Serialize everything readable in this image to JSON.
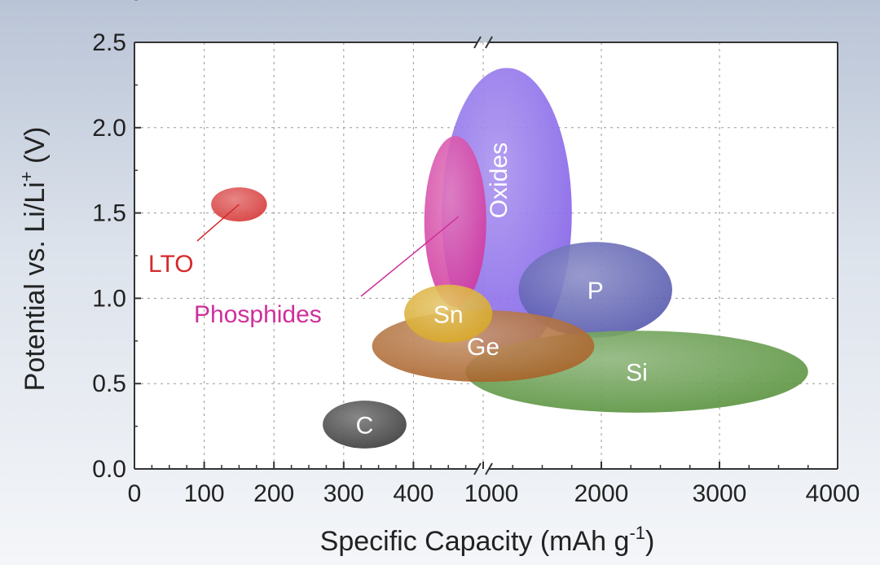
{
  "chart_data": {
    "type": "scatter",
    "xlabel": "Specific Capacity (mAh g",
    "xlabel_sup": "-1",
    "xlabel_end": ")",
    "ylabel": "Potential vs. Li/Li",
    "ylabel_sup": "+",
    "ylabel_end": " (V)",
    "x_axis_broken": true,
    "x_ticks": [
      "0",
      "100",
      "200",
      "300",
      "400",
      "1000",
      "2000",
      "3000",
      "4000"
    ],
    "y_ticks": [
      "0.0",
      "0.5",
      "1.0",
      "1.5",
      "2.0",
      "2.5"
    ],
    "ylim": [
      0,
      2.5
    ],
    "grid": true,
    "regions": [
      {
        "name": "LTO",
        "label": "LTO",
        "label_position": "callout",
        "x_center": 150,
        "x_half_width": 40,
        "y_center": 1.55,
        "y_half_height": 0.1,
        "color": "#d42a2a"
      },
      {
        "name": "Oxides",
        "label": "Oxides",
        "label_position": "inside-vertical",
        "x_center": 1200,
        "x_half_width": 550,
        "y_center": 1.5,
        "y_half_height": 0.85,
        "color": "#7a56e6"
      },
      {
        "name": "Phosphides",
        "label": "Phosphides",
        "label_position": "callout",
        "x_center": 460,
        "x_half_width": 120,
        "y_center": 1.45,
        "y_half_height": 0.5,
        "color": "#cf2f9a"
      },
      {
        "name": "P",
        "label": "P",
        "label_position": "inside",
        "x_center": 1950,
        "x_half_width": 650,
        "y_center": 1.05,
        "y_half_height": 0.28,
        "color": "#4b4fa8"
      },
      {
        "name": "Si",
        "label": "Si",
        "label_position": "inside",
        "x_center": 2300,
        "x_half_width": 1450,
        "y_center": 0.57,
        "y_half_height": 0.24,
        "color": "#4e8c32"
      },
      {
        "name": "Ge",
        "label": "Ge",
        "label_position": "inside",
        "x_center": 1000,
        "x_half_width": 700,
        "y_center": 0.72,
        "y_half_height": 0.21,
        "color": "#a55a1e"
      },
      {
        "name": "Sn",
        "label": "Sn",
        "label_position": "inside",
        "x_center": 450,
        "x_half_width": 145,
        "y_center": 0.91,
        "y_half_height": 0.17,
        "color": "#d6a51c"
      },
      {
        "name": "C",
        "label": "C",
        "label_position": "inside",
        "x_center": 330,
        "x_half_width": 60,
        "y_center": 0.26,
        "y_half_height": 0.14,
        "color": "#2d2d2d"
      }
    ]
  }
}
